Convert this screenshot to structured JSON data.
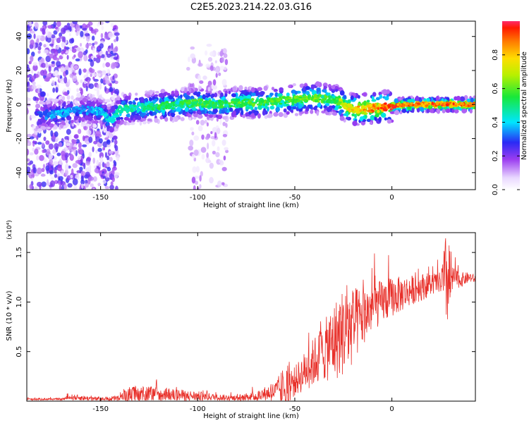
{
  "title": "C2E5.2023.214.22.03.G16",
  "chart_data": [
    {
      "type": "heatmap",
      "xlabel": "Height of straight line (km)",
      "ylabel": "Frequency (Hz)",
      "xlim": [
        -188,
        43
      ],
      "ylim": [
        -50,
        49
      ],
      "xticks": [
        -150,
        -100,
        -50,
        0
      ],
      "yticks": [
        -40,
        -20,
        0,
        20,
        40
      ],
      "colorbar": {
        "label": "Normalized spectral amplitude",
        "range": [
          0,
          1
        ],
        "ticks": [
          0.0,
          0.2,
          0.4,
          0.6,
          0.8
        ],
        "colormap": "rainbow (white-lavender-purple-blue-cyan-green-yellow-orange-red)"
      },
      "ridge": {
        "x": [
          -183,
          -170,
          -160,
          -150,
          -145,
          -140,
          -130,
          -120,
          -110,
          -100,
          -90,
          -80,
          -70,
          -60,
          -50,
          -40,
          -30,
          -25,
          -20,
          -10,
          0,
          10,
          20,
          30,
          42
        ],
        "y": [
          -7,
          -5,
          -3,
          -4,
          -10,
          -3,
          -2,
          -1,
          0,
          1,
          0,
          1,
          1,
          2,
          3,
          4,
          3,
          0,
          -3,
          -2,
          -1,
          0,
          0,
          0,
          0
        ],
        "amplitude": [
          0.35,
          0.4,
          0.35,
          0.4,
          0.45,
          0.5,
          0.5,
          0.55,
          0.55,
          0.6,
          0.55,
          0.6,
          0.6,
          0.6,
          0.62,
          0.65,
          0.55,
          0.75,
          0.8,
          0.9,
          0.95,
          0.92,
          0.95,
          0.95,
          0.9
        ]
      },
      "background_noise_regions": [
        {
          "x": [
            -188,
            -141
          ],
          "y": [
            -50,
            49
          ],
          "amplitude": 0.25
        },
        {
          "x": [
            -105,
            -85
          ],
          "y": [
            -50,
            35
          ],
          "amplitude": 0.15
        }
      ]
    },
    {
      "type": "line",
      "xlabel": "Height of straight line (km)",
      "ylabel": "SNR (10 * v/v)",
      "y_multiplier": "(x10⁴)",
      "xlim": [
        -188,
        43
      ],
      "ylim": [
        0,
        1.7
      ],
      "xticks": [
        -150,
        -100,
        -50,
        0
      ],
      "yticks": [
        0.5,
        1.0,
        1.5
      ],
      "ytick_labels": [
        "0.5",
        "1.0",
        "1.5"
      ],
      "color": "#e8302a",
      "envelope": {
        "x": [
          -188,
          -170,
          -165,
          -150,
          -140,
          -136,
          -125,
          -110,
          -100,
          -90,
          -80,
          -70,
          -60,
          -55,
          -50,
          -45,
          -40,
          -35,
          -30,
          -25,
          -20,
          -15,
          -10,
          -5,
          0,
          5,
          10,
          15,
          20,
          25,
          28,
          30,
          31,
          32,
          35,
          40,
          43
        ],
        "base": [
          0.02,
          0.02,
          0.04,
          0.02,
          0.03,
          0.06,
          0.07,
          0.06,
          0.05,
          0.04,
          0.03,
          0.05,
          0.1,
          0.15,
          0.2,
          0.3,
          0.4,
          0.5,
          0.6,
          0.7,
          0.75,
          0.85,
          0.95,
          1.0,
          1.05,
          1.08,
          1.12,
          1.15,
          1.18,
          1.2,
          1.22,
          1.2,
          1.22,
          1.25,
          1.22,
          1.25,
          1.23
        ],
        "spread": [
          0.01,
          0.01,
          0.03,
          0.02,
          0.03,
          0.09,
          0.08,
          0.06,
          0.05,
          0.03,
          0.03,
          0.05,
          0.1,
          0.22,
          0.15,
          0.2,
          0.25,
          0.3,
          0.4,
          0.45,
          0.4,
          0.3,
          0.25,
          0.22,
          0.2,
          0.18,
          0.15,
          0.14,
          0.12,
          0.1,
          0.5,
          0.45,
          0.15,
          0.1,
          0.08,
          0.05,
          0.04
        ]
      }
    }
  ]
}
